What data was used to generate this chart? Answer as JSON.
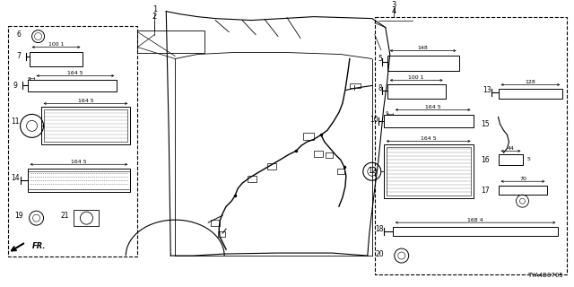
{
  "bg_color": "#ffffff",
  "fig_width": 6.4,
  "fig_height": 3.2,
  "dpi": 100,
  "catalog_num": "TYA4B0705"
}
